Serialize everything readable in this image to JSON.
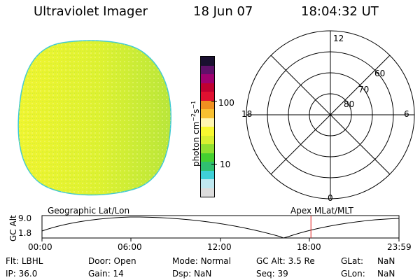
{
  "header": {
    "instrument": "Ultraviolet Imager",
    "date": "18 Jun 07",
    "time": "18:04:32 UT"
  },
  "image": {
    "colors": {
      "outline": "#3fcad4",
      "fill_main": "#ddf231",
      "fill_left": "#f0f530",
      "fill_right": "#b8e63a"
    }
  },
  "colorbar": {
    "unit_text": "photon cm",
    "unit_exp1": "−2",
    "unit_s": "s",
    "unit_exp2": "−1",
    "ticks": [
      "100",
      "10"
    ],
    "colors": [
      "#dcdcdc",
      "#bfe8f0",
      "#3fd0d8",
      "#30c070",
      "#44d030",
      "#90e030",
      "#d8f030",
      "#f8f830",
      "#fff6b0",
      "#f8c030",
      "#f09020",
      "#e01030",
      "#c00030",
      "#a00070",
      "#60106a",
      "#1a1030"
    ]
  },
  "polar": {
    "lat_labels": [
      "60",
      "70",
      "80"
    ],
    "mlt_labels": {
      "top": "12",
      "left": "18",
      "right": "6",
      "bottom": "0"
    }
  },
  "altitude_strip": {
    "axis_label": "GC Alt",
    "y_ticks": [
      "9.0",
      "1.8"
    ],
    "left_label": "Geographic Lat/Lon",
    "right_label": "Apex MLat/MLT",
    "x_ticks": [
      "00:00",
      "06:00",
      "12:00",
      "18:00",
      "23:59"
    ],
    "marker_color": "#e02020",
    "marker_time_hours": 18.08
  },
  "footer": {
    "rows": [
      [
        {
          "label": "Flt:",
          "value": "LBHL"
        },
        {
          "label": "Door:",
          "value": "Open"
        },
        {
          "label": "Mode:",
          "value": "Normal"
        },
        {
          "label": "GC Alt:",
          "value": "3.5 Re"
        },
        {
          "label": "GLat:",
          "value": "NaN"
        }
      ],
      [
        {
          "label": "IP:",
          "value": "36.0"
        },
        {
          "label": "Gain:",
          "value": "14"
        },
        {
          "label": "Dsp:",
          "value": "NaN"
        },
        {
          "label": "Seq:",
          "value": "39"
        },
        {
          "label": "GLon:",
          "value": "NaN"
        }
      ]
    ]
  }
}
